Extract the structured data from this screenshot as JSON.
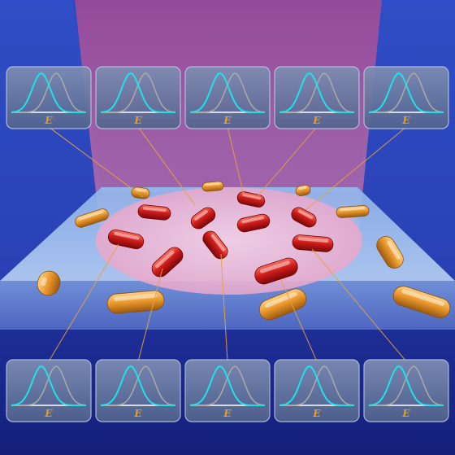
{
  "colors": {
    "background_top": "#1f3fb0",
    "background_bottom": "#1a2a8a",
    "beam": "#b45aa0",
    "substrate": "#a8c8f0",
    "spot": "#f0b8d8",
    "rod_gold": "#e89a30",
    "rod_red": "#c81818",
    "panel": "#6a7ca0",
    "curve_cyan": "#22e0e8",
    "curve_gray": "#a8a8a8",
    "connector": "#e8a040"
  },
  "panels": {
    "axis_label": "E",
    "top_count": 5,
    "bottom_count": 5
  }
}
